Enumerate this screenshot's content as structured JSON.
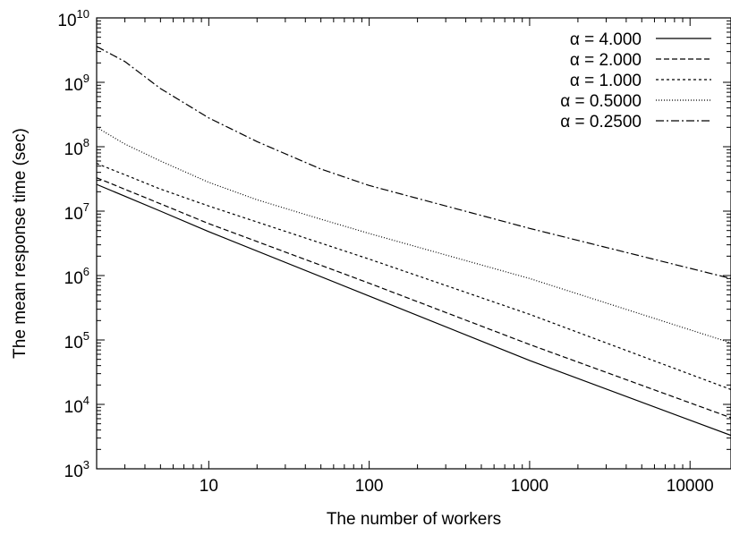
{
  "chart_data": {
    "type": "line",
    "title": "",
    "xlabel": "The number of workers",
    "ylabel": "The mean response time (sec)",
    "xscale": "log",
    "yscale": "log",
    "xlim": [
      2,
      18000
    ],
    "ylim": [
      1000,
      10000000000
    ],
    "x_ticks": [
      {
        "value": 10,
        "label": "10"
      },
      {
        "value": 100,
        "label": "100"
      },
      {
        "value": 1000,
        "label": "1000"
      },
      {
        "value": 10000,
        "label": "10000"
      }
    ],
    "y_ticks": [
      {
        "value": 1000,
        "base": "10",
        "exp": "3"
      },
      {
        "value": 10000,
        "base": "10",
        "exp": "4"
      },
      {
        "value": 100000,
        "base": "10",
        "exp": "5"
      },
      {
        "value": 1000000,
        "base": "10",
        "exp": "6"
      },
      {
        "value": 10000000,
        "base": "10",
        "exp": "7"
      },
      {
        "value": 100000000,
        "base": "10",
        "exp": "8"
      },
      {
        "value": 1000000000,
        "base": "10",
        "exp": "9"
      },
      {
        "value": 10000000000,
        "base": "10",
        "exp": "10"
      }
    ],
    "grid": false,
    "legend_position": "top-right",
    "colors": {
      "line": "#000000",
      "frame": "#000000",
      "background": "#ffffff"
    },
    "series": [
      {
        "name": "α = 4.000",
        "dash": "solid",
        "x": [
          2,
          5,
          10,
          100,
          1000,
          18000
        ],
        "y": [
          26000000,
          10000000,
          4800000,
          480000,
          48000,
          3300
        ]
      },
      {
        "name": "α = 2.000",
        "dash": "dashed",
        "x": [
          2,
          5,
          10,
          100,
          1000,
          18000
        ],
        "y": [
          33000000,
          13000000,
          6400000,
          760000,
          85000,
          6200
        ]
      },
      {
        "name": "α = 1.000",
        "dash": "dotted",
        "x": [
          2,
          5,
          10,
          100,
          1000,
          18000
        ],
        "y": [
          55000000,
          22000000,
          12000000,
          1800000,
          250000,
          17000
        ]
      },
      {
        "name": "α = 0.5000",
        "dash": "fine-dotted",
        "x": [
          2,
          3,
          5,
          10,
          20,
          50,
          100,
          1000,
          18000
        ],
        "y": [
          200000000,
          110000000,
          60000000,
          28000000,
          15000000,
          7500000,
          4500000,
          900000,
          90000
        ]
      },
      {
        "name": "α = 0.2500",
        "dash": "dash-dot",
        "x": [
          2,
          3,
          5,
          10,
          20,
          50,
          100,
          1000,
          18000
        ],
        "y": [
          3600000000,
          2100000000,
          800000000,
          280000000,
          120000000,
          45000000,
          25000000,
          5400000,
          900000
        ]
      }
    ]
  }
}
